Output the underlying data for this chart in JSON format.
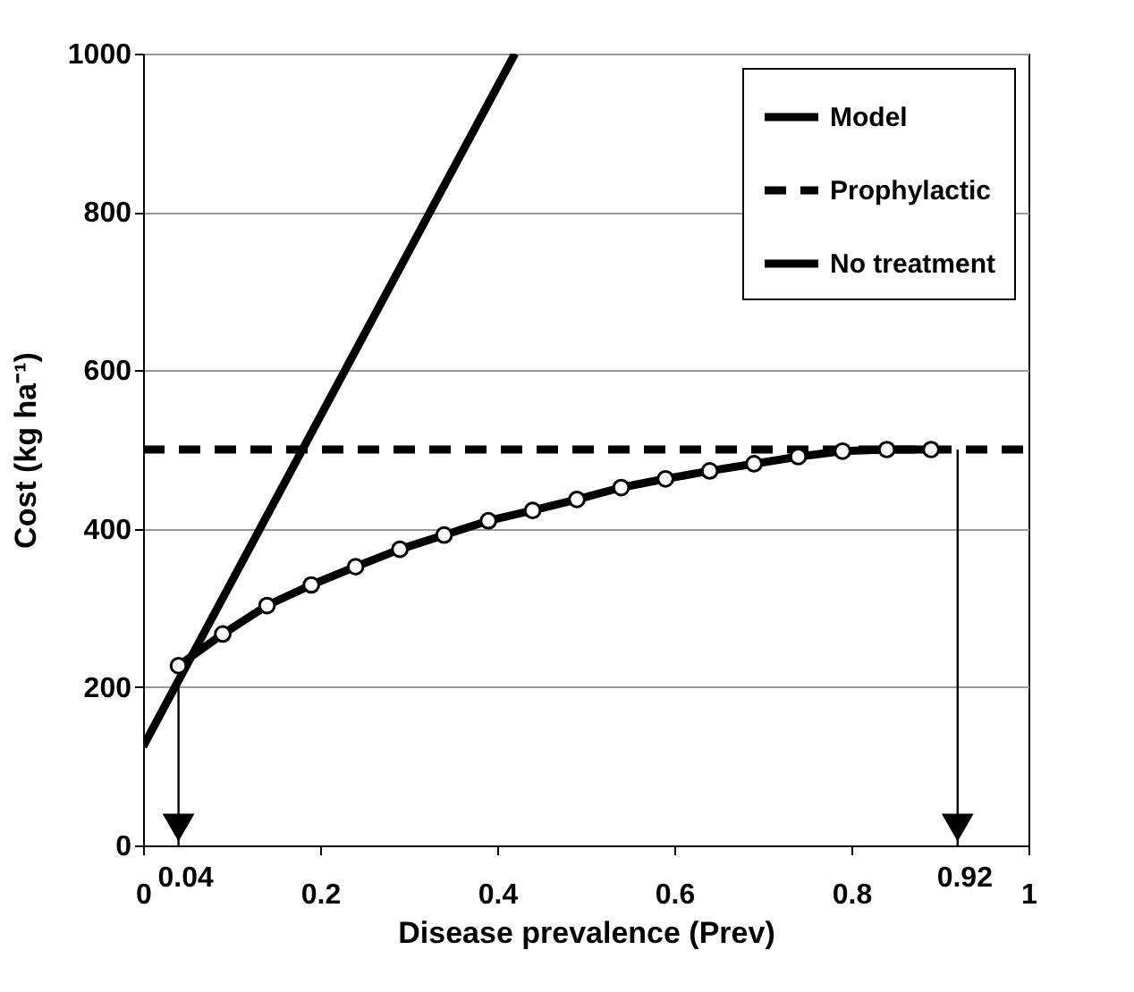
{
  "chart_data": {
    "type": "line",
    "xlabel": "Disease prevalence (Prev)",
    "ylabel": "Cost (kg ha⁻¹)",
    "xlim": [
      0,
      1
    ],
    "xticks": [
      0,
      0.2,
      0.4,
      0.6,
      0.8,
      1
    ],
    "ylim": [
      0,
      1000
    ],
    "yticks": [
      0,
      200,
      400,
      600,
      800,
      1000
    ],
    "grid": "y",
    "legend": "top right",
    "series": [
      {
        "name": "Model",
        "color": "#000000",
        "marker": "circle",
        "line_style": "solid",
        "x": [
          0.04,
          0.09,
          0.14,
          0.19,
          0.24,
          0.29,
          0.34,
          0.39,
          0.44,
          0.49,
          0.54,
          0.59,
          0.64,
          0.69,
          0.74,
          0.79,
          0.84,
          0.89
        ],
        "values": [
          227,
          267,
          303,
          329,
          352,
          374,
          392,
          410,
          423,
          437,
          452,
          463,
          473,
          482,
          491,
          498,
          500,
          500
        ]
      },
      {
        "name": "Prophylactic",
        "color": "#000000",
        "marker": "none",
        "line_style": "dashed",
        "x": [
          0,
          1
        ],
        "values": [
          500,
          500
        ]
      },
      {
        "name": "No treatment",
        "color": "#000000",
        "marker": "none",
        "line_style": "solid",
        "x": [
          0,
          0.42
        ],
        "values": [
          125,
          1000
        ]
      }
    ],
    "annotations": [
      {
        "text": "0.04",
        "x": 0.04,
        "y": 227
      },
      {
        "text": "0.92",
        "x": 0.92,
        "y": 500
      }
    ]
  }
}
